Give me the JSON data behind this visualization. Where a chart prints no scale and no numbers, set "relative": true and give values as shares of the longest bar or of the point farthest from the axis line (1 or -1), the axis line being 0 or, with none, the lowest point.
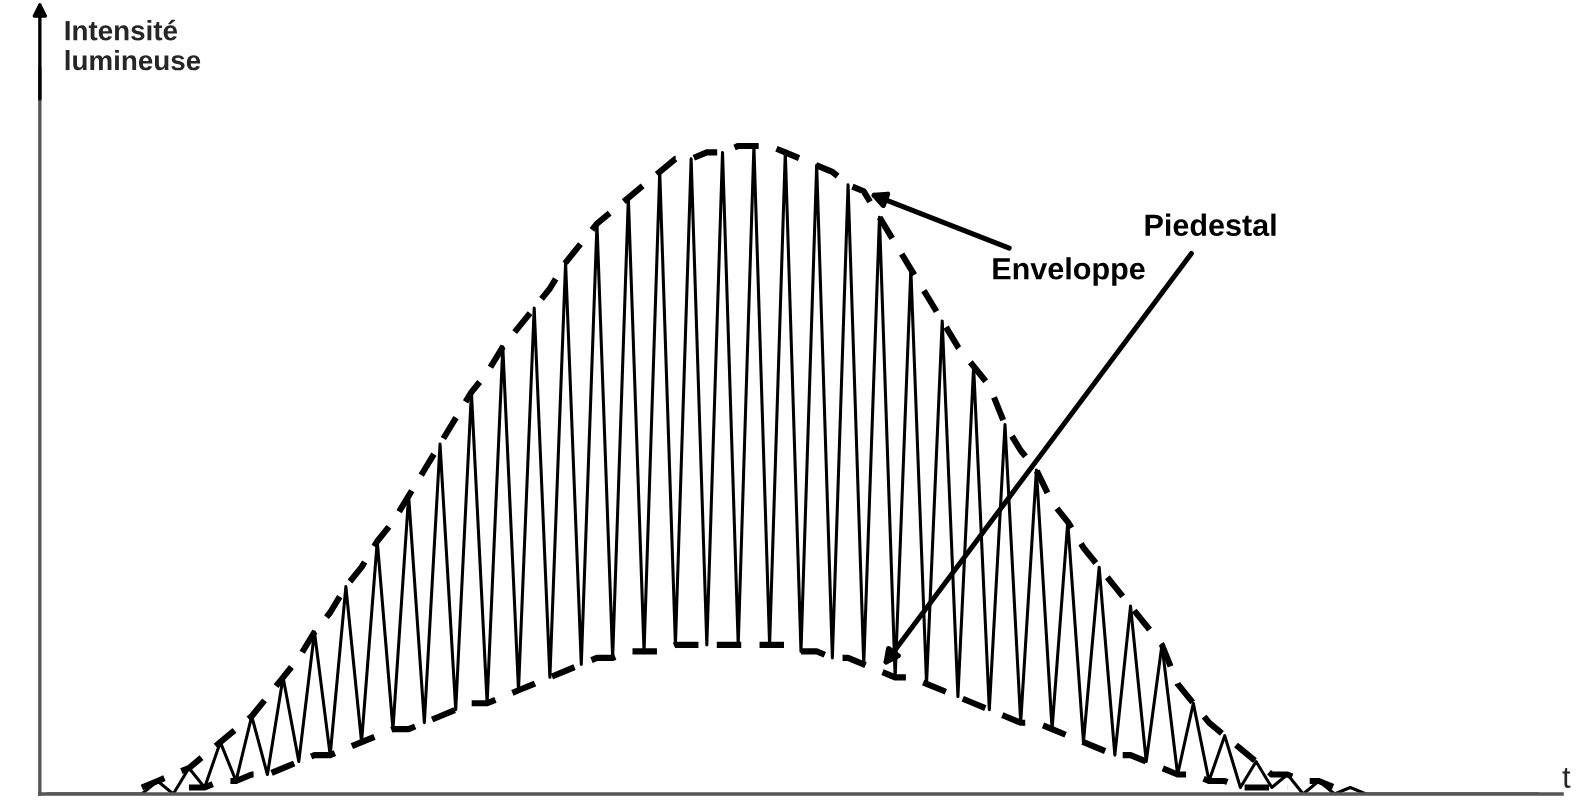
{
  "chart_data": {
    "type": "line",
    "relative": true,
    "ylabel": "Intensité lumineuse",
    "xlabel": "t",
    "legend": false,
    "marker": "none",
    "categories": [
      null,
      null,
      null,
      null,
      null,
      null,
      null,
      null,
      null,
      null,
      null,
      null,
      null,
      null,
      null,
      null,
      null,
      null,
      null,
      null,
      null,
      null,
      null,
      null,
      null,
      null,
      null,
      null,
      null,
      null,
      null,
      null,
      null,
      null,
      null,
      null,
      null,
      null,
      null,
      null,
      null,
      null,
      null,
      null,
      null,
      null,
      null,
      null,
      null,
      null,
      null,
      null,
      null,
      null,
      null,
      null,
      null,
      null,
      null,
      null,
      null,
      null,
      null,
      null,
      null,
      null,
      null,
      null,
      null,
      null,
      null,
      null,
      null,
      null,
      null,
      null,
      null,
      null,
      null,
      null,
      null,
      null,
      null,
      null,
      null,
      null,
      null,
      null,
      null,
      null,
      null,
      null,
      null,
      null,
      null,
      null
    ],
    "series": [
      {
        "color": "#000000",
        "line_style": "solid",
        "values": [
          0,
          0,
          0,
          0,
          0,
          0,
          0,
          0.02,
          0,
          0.04,
          0.01,
          0.08,
          0.02,
          0.12,
          0.03,
          0.18,
          0.05,
          0.25,
          0.06,
          0.32,
          0.08,
          0.39,
          0.1,
          0.46,
          0.11,
          0.54,
          0.13,
          0.62,
          0.14,
          0.69,
          0.16,
          0.75,
          0.18,
          0.82,
          0.2,
          0.88,
          0.21,
          0.92,
          0.22,
          0.96,
          0.23,
          0.98,
          0.23,
          0.99,
          0.23,
          1.0,
          0.23,
          0.99,
          0.22,
          0.97,
          0.21,
          0.94,
          0.2,
          0.89,
          0.18,
          0.81,
          0.17,
          0.73,
          0.15,
          0.66,
          0.13,
          0.57,
          0.11,
          0.5,
          0.1,
          0.42,
          0.08,
          0.35,
          0.06,
          0.29,
          0.05,
          0.23,
          0.03,
          0.14,
          0.02,
          0.09,
          0.01,
          0.05,
          0.01,
          0.03,
          0,
          0.02,
          0,
          0.01,
          0,
          0,
          0,
          0,
          0,
          0,
          0,
          0,
          0,
          0,
          0,
          0
        ]
      },
      {
        "name": "Enveloppe",
        "color": "#000000",
        "line_style": "dashed",
        "values": [
          null,
          null,
          null,
          null,
          null,
          null,
          0.01,
          0.02,
          0.03,
          0.04,
          0.06,
          0.08,
          0.1,
          0.12,
          0.15,
          0.18,
          0.21,
          0.25,
          0.28,
          0.32,
          0.35,
          0.39,
          0.42,
          0.46,
          0.5,
          0.54,
          0.58,
          0.62,
          0.65,
          0.69,
          0.72,
          0.75,
          0.78,
          0.82,
          0.85,
          0.88,
          0.9,
          0.92,
          0.94,
          0.96,
          0.98,
          0.98,
          0.99,
          0.99,
          1.0,
          1.0,
          1.0,
          0.99,
          0.98,
          0.97,
          0.96,
          0.94,
          0.93,
          0.89,
          0.85,
          0.81,
          0.77,
          0.73,
          0.69,
          0.66,
          0.63,
          0.57,
          0.53,
          0.5,
          0.45,
          0.42,
          0.38,
          0.35,
          0.32,
          0.29,
          0.26,
          0.23,
          0.17,
          0.14,
          0.11,
          0.09,
          0.07,
          0.05,
          0.03,
          0.03,
          0.02,
          0.02,
          0.01,
          0.01,
          null,
          null,
          null,
          null,
          null,
          null,
          null,
          null,
          null,
          null,
          null,
          null
        ]
      },
      {
        "name": "Piedestal",
        "color": "#000000",
        "line_style": "dashed",
        "values": [
          null,
          null,
          null,
          null,
          null,
          null,
          null,
          null,
          null,
          0.01,
          0.01,
          0.02,
          0.02,
          0.03,
          0.03,
          0.04,
          0.05,
          0.06,
          0.06,
          0.07,
          0.08,
          0.09,
          0.1,
          0.1,
          0.11,
          0.12,
          0.13,
          0.14,
          0.14,
          0.15,
          0.16,
          0.17,
          0.18,
          0.19,
          0.2,
          0.21,
          0.21,
          0.22,
          0.22,
          0.22,
          0.23,
          0.23,
          0.23,
          0.23,
          0.23,
          0.23,
          0.23,
          0.23,
          0.22,
          0.22,
          0.21,
          0.21,
          0.2,
          0.19,
          0.18,
          0.18,
          0.17,
          0.16,
          0.15,
          0.14,
          0.13,
          0.12,
          0.11,
          0.11,
          0.1,
          0.09,
          0.08,
          0.07,
          0.06,
          0.06,
          0.05,
          0.04,
          0.03,
          0.03,
          0.02,
          0.02,
          0.01,
          0.01,
          0.01,
          0.01,
          null,
          null,
          null,
          null,
          null,
          null,
          null,
          null,
          null,
          null,
          null,
          null,
          null,
          null,
          null,
          null
        ]
      }
    ]
  }
}
